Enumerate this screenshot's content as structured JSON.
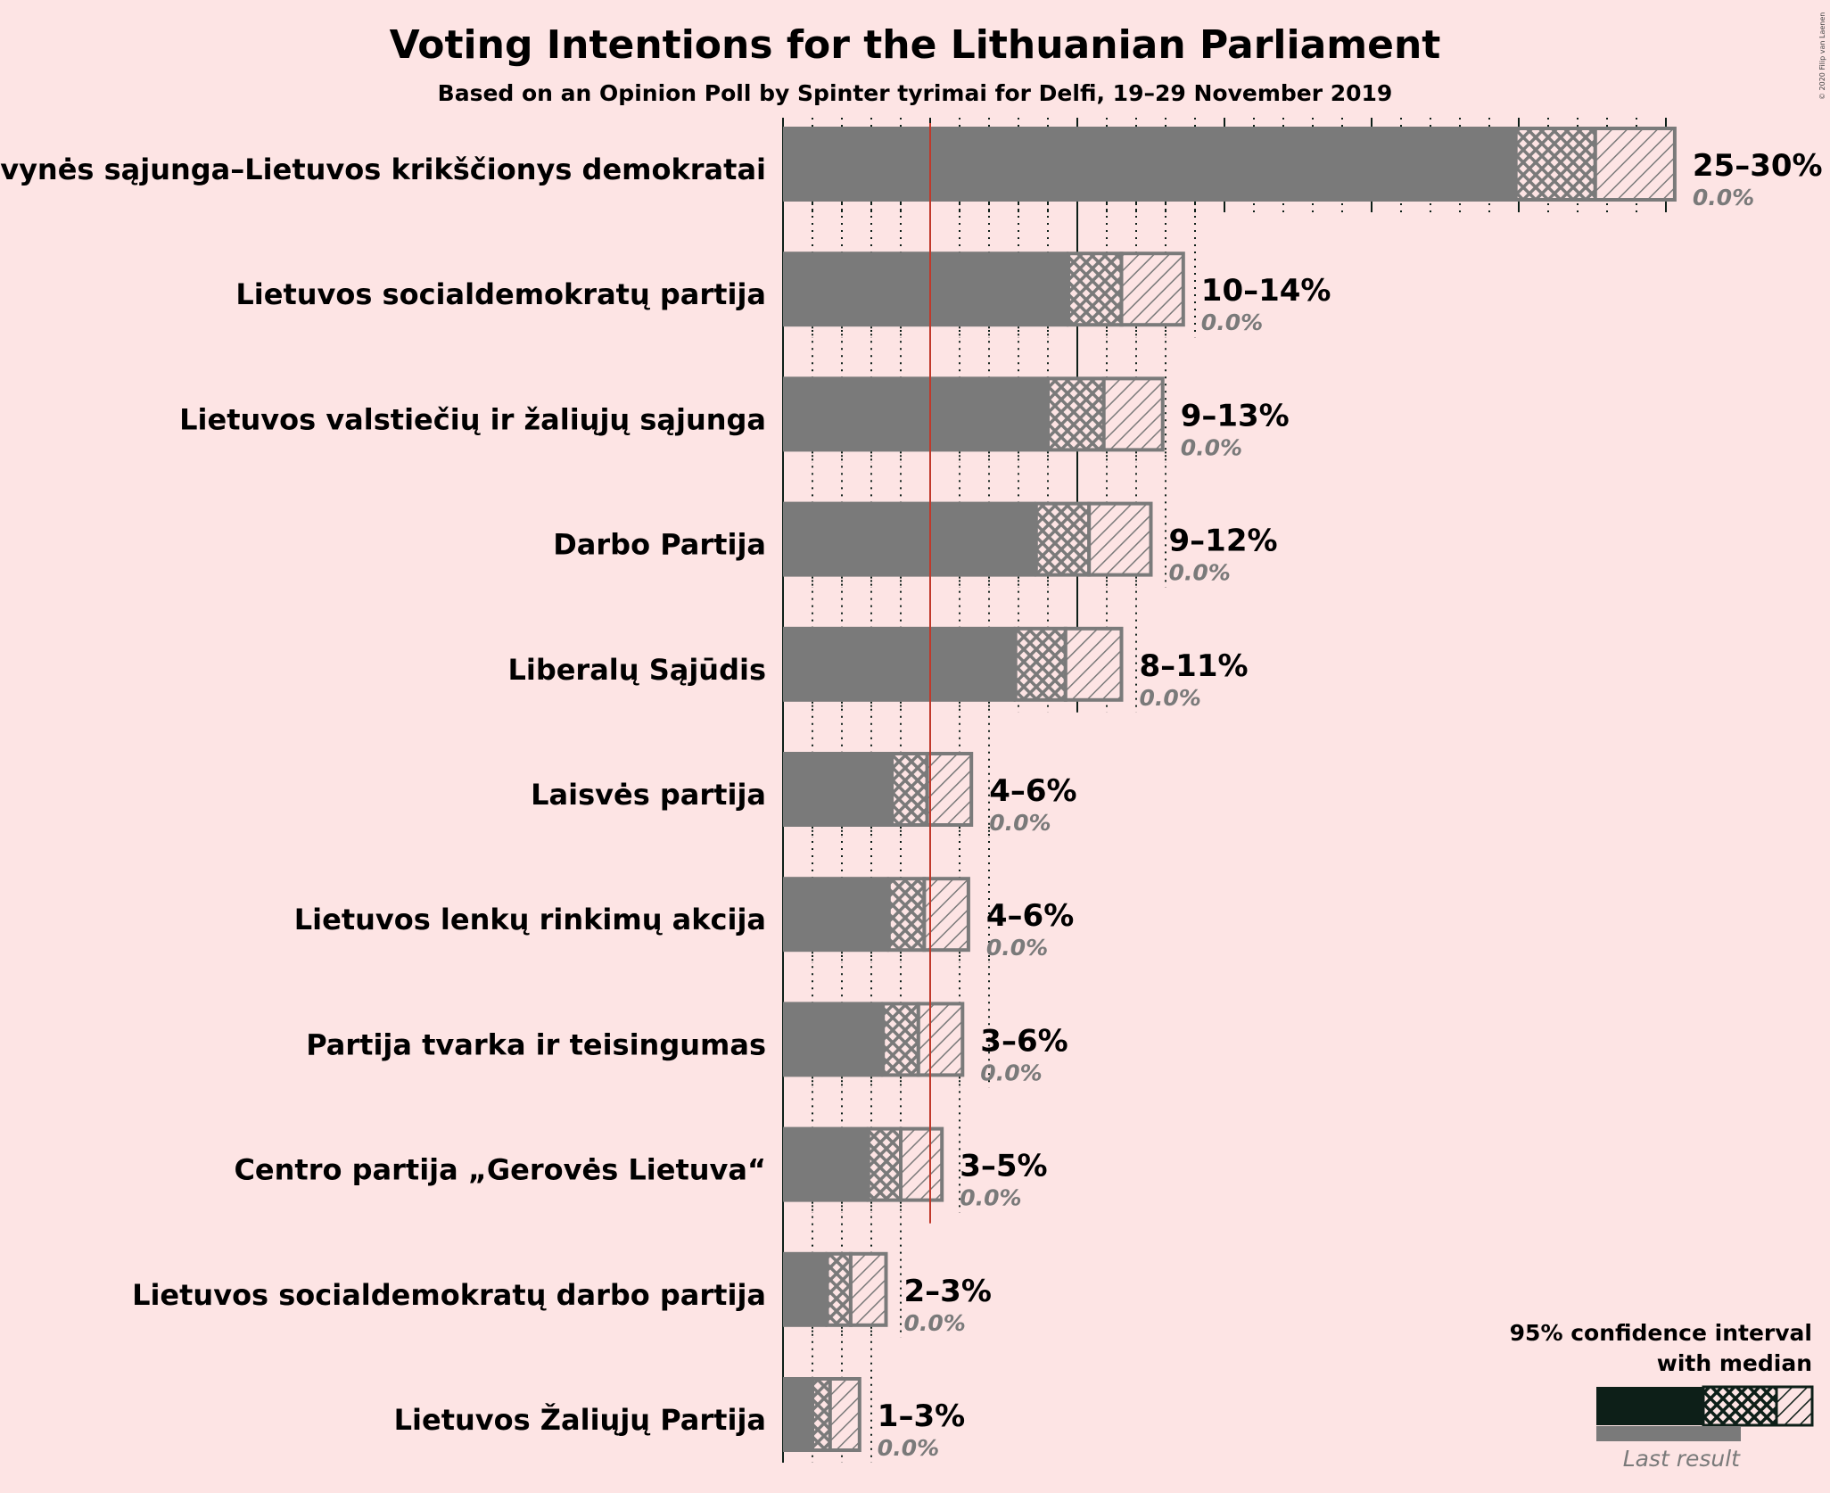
{
  "title": "Voting Intentions for the Lithuanian Parliament",
  "subtitle": "Based on an Opinion Poll by Spinter tyrimai for Delfi, 19–29 November 2019",
  "copyright": "© 2020 Filip van Laenen",
  "legend": {
    "line1": "95% confidence interval",
    "line2": "with median",
    "last_result": "Last result"
  },
  "colors": {
    "background": "#fde4e4",
    "bar": "#7a7a7a",
    "threshold": "#c0392b",
    "legend_dark": "#0d1f18",
    "text": "#0d1f18"
  },
  "chart_data": {
    "type": "bar",
    "orientation": "horizontal",
    "unit": "%",
    "xlim": [
      0,
      31
    ],
    "threshold": 5,
    "grid": "dotted every 1%, solid every 5%",
    "series": [
      {
        "name": "Tėvynės sąjunga–Lietuvos krikščionys demokratai",
        "low": 24.9,
        "lower_mid": 25.0,
        "median": 27.6,
        "upper": 30.3,
        "range_label": "25–30%",
        "last_result": "0.0%"
      },
      {
        "name": "Lietuvos socialdemokratų partija",
        "low": 9.7,
        "lower_mid": 9.7,
        "median": 11.5,
        "upper": 13.6,
        "range_label": "10–14%",
        "last_result": "0.0%"
      },
      {
        "name": "Lietuvos valstiečių ir žaliųjų sąjunga",
        "low": 9.0,
        "lower_mid": 9.0,
        "median": 10.9,
        "upper": 12.9,
        "range_label": "9–13%",
        "last_result": "0.0%"
      },
      {
        "name": "Darbo Partija",
        "low": 8.6,
        "lower_mid": 8.6,
        "median": 10.4,
        "upper": 12.5,
        "range_label": "9–12%",
        "last_result": "0.0%"
      },
      {
        "name": "Liberalų Sąjūdis",
        "low": 7.9,
        "lower_mid": 7.9,
        "median": 9.6,
        "upper": 11.5,
        "range_label": "8–11%",
        "last_result": "0.0%"
      },
      {
        "name": "Laisvės partija",
        "low": 3.7,
        "lower_mid": 3.7,
        "median": 4.9,
        "upper": 6.4,
        "range_label": "4–6%",
        "last_result": "0.0%"
      },
      {
        "name": "Lietuvos lenkų rinkimų akcija",
        "low": 3.6,
        "lower_mid": 3.6,
        "median": 4.8,
        "upper": 6.3,
        "range_label": "4–6%",
        "last_result": "0.0%"
      },
      {
        "name": "Partija tvarka ir teisingumas",
        "low": 3.4,
        "lower_mid": 3.4,
        "median": 4.6,
        "upper": 6.1,
        "range_label": "3–6%",
        "last_result": "0.0%"
      },
      {
        "name": "Centro partija „Gerovės Lietuva“",
        "low": 2.9,
        "lower_mid": 2.9,
        "median": 4.0,
        "upper": 5.4,
        "range_label": "3–5%",
        "last_result": "0.0%"
      },
      {
        "name": "Lietuvos socialdemokratų darbo partija",
        "low": 1.5,
        "lower_mid": 1.5,
        "median": 2.3,
        "upper": 3.5,
        "range_label": "2–3%",
        "last_result": "0.0%"
      },
      {
        "name": "Lietuvos Žaliųjų Partija",
        "low": 1.0,
        "lower_mid": 1.0,
        "median": 1.6,
        "upper": 2.6,
        "range_label": "1–3%",
        "last_result": "0.0%"
      }
    ]
  }
}
